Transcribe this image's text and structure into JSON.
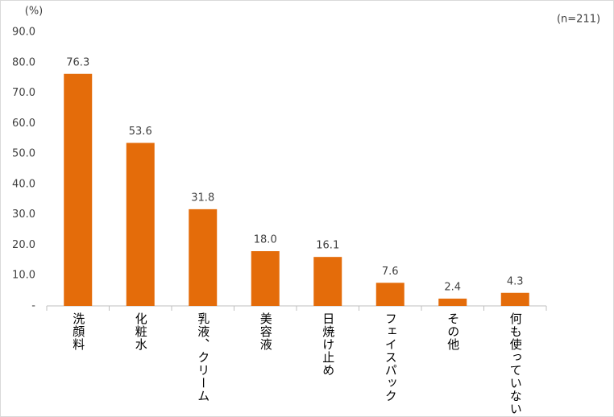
{
  "chart_data": {
    "type": "bar",
    "y_unit": "(%)",
    "annotation": "(n=211)",
    "categories": [
      "洗顔料",
      "化粧水",
      "乳液、クリーム",
      "美容液",
      "日焼け止め",
      "フェイスパック",
      "その他",
      "何も使っていない"
    ],
    "values": [
      76.3,
      53.6,
      31.8,
      18.0,
      16.1,
      7.6,
      2.4,
      4.3
    ],
    "value_labels": [
      "76.3",
      "53.6",
      "31.8",
      "18.0",
      "16.1",
      "7.6",
      "2.4",
      "4.3"
    ],
    "color": "#e46c0a",
    "ylim": [
      0,
      90
    ],
    "yticks": [
      {
        "value": 0,
        "label": "-"
      },
      {
        "value": 10,
        "label": "10.0"
      },
      {
        "value": 20,
        "label": "20.0"
      },
      {
        "value": 30,
        "label": "30.0"
      },
      {
        "value": 40,
        "label": "40.0"
      },
      {
        "value": 50,
        "label": "50.0"
      },
      {
        "value": 60,
        "label": "60.0"
      },
      {
        "value": 70,
        "label": "70.0"
      },
      {
        "value": 80,
        "label": "80.0"
      },
      {
        "value": 90,
        "label": "90.0"
      }
    ],
    "grid": false
  }
}
